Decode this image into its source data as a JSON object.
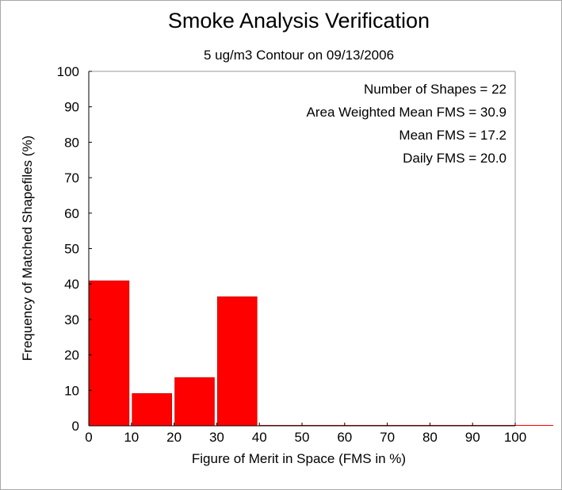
{
  "chart_data": {
    "type": "bar",
    "title": "Smoke Analysis Verification",
    "subtitle": "5 ug/m3 Contour on 09/13/2006",
    "xlabel": "Figure of Merit in Space (FMS in %)",
    "ylabel": "Frequency of Matched Shapefiles (%)",
    "xlim": [
      0,
      100
    ],
    "ylim": [
      0,
      100
    ],
    "xticks": [
      0,
      10,
      20,
      30,
      40,
      50,
      60,
      70,
      80,
      90,
      100
    ],
    "yticks": [
      0,
      10,
      20,
      30,
      40,
      50,
      60,
      70,
      80,
      90,
      100
    ],
    "grid": false,
    "bar_color": "#ff0000",
    "bins": [
      {
        "start": 0,
        "end": 10,
        "value": 40.9
      },
      {
        "start": 10,
        "end": 20,
        "value": 9.1
      },
      {
        "start": 20,
        "end": 30,
        "value": 13.6
      },
      {
        "start": 30,
        "end": 40,
        "value": 36.4
      },
      {
        "start": 40,
        "end": 50,
        "value": 0
      },
      {
        "start": 50,
        "end": 60,
        "value": 0
      },
      {
        "start": 60,
        "end": 70,
        "value": 0
      },
      {
        "start": 70,
        "end": 80,
        "value": 0
      },
      {
        "start": 80,
        "end": 90,
        "value": 0
      },
      {
        "start": 90,
        "end": 100,
        "value": 0
      }
    ],
    "annotations": [
      "Number of Shapes = 22",
      "Area Weighted Mean FMS = 30.9",
      "Mean FMS = 17.2",
      "Daily FMS = 20.0"
    ]
  }
}
